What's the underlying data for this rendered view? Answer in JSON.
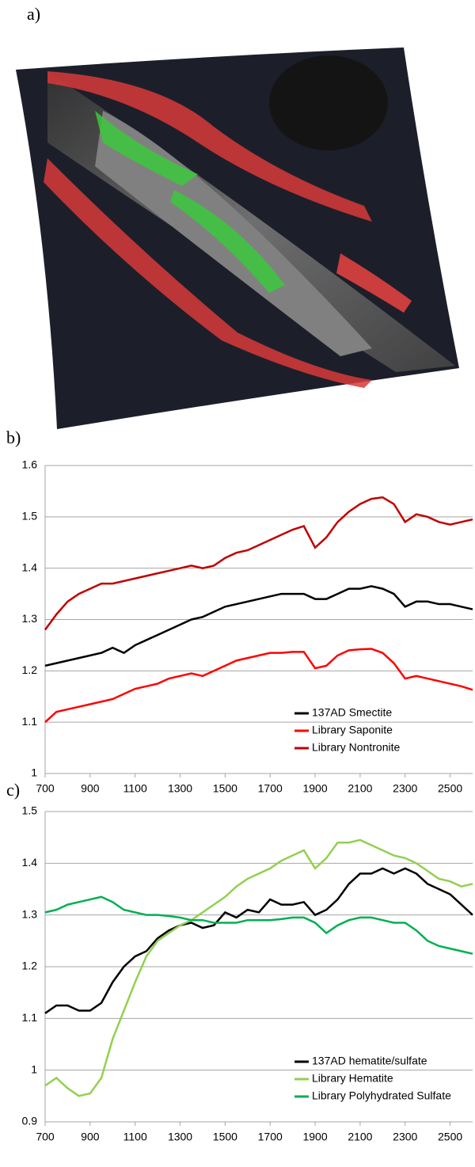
{
  "figure_label": "a)",
  "chart_data": [
    {
      "type": "line",
      "label": "b)",
      "x": [
        700,
        750,
        800,
        850,
        900,
        950,
        1000,
        1050,
        1100,
        1150,
        1200,
        1250,
        1300,
        1350,
        1400,
        1450,
        1500,
        1550,
        1600,
        1650,
        1700,
        1750,
        1800,
        1850,
        1900,
        1950,
        2000,
        2050,
        2100,
        2150,
        2200,
        2250,
        2300,
        2350,
        2400,
        2450,
        2500,
        2550,
        2600
      ],
      "series": [
        {
          "name": "137AD Smectite",
          "color": "#000000",
          "values": [
            1.21,
            1.215,
            1.22,
            1.225,
            1.23,
            1.235,
            1.245,
            1.235,
            1.25,
            1.26,
            1.27,
            1.28,
            1.29,
            1.3,
            1.305,
            1.315,
            1.325,
            1.33,
            1.335,
            1.34,
            1.345,
            1.35,
            1.35,
            1.35,
            1.34,
            1.34,
            1.35,
            1.36,
            1.36,
            1.365,
            1.36,
            1.35,
            1.325,
            1.335,
            1.335,
            1.33,
            1.33,
            1.325,
            1.32
          ]
        },
        {
          "name": "Library Saponite",
          "color": "#ff0000",
          "values": [
            1.1,
            1.12,
            1.125,
            1.13,
            1.135,
            1.14,
            1.145,
            1.155,
            1.165,
            1.17,
            1.175,
            1.185,
            1.19,
            1.195,
            1.19,
            1.2,
            1.21,
            1.22,
            1.225,
            1.23,
            1.235,
            1.235,
            1.237,
            1.237,
            1.205,
            1.21,
            1.23,
            1.24,
            1.242,
            1.243,
            1.235,
            1.215,
            1.185,
            1.19,
            1.185,
            1.18,
            1.175,
            1.17,
            1.163
          ]
        },
        {
          "name": "Library Nontronite",
          "color": "#c00000",
          "values": [
            1.28,
            1.31,
            1.335,
            1.35,
            1.36,
            1.37,
            1.37,
            1.375,
            1.38,
            1.385,
            1.39,
            1.395,
            1.4,
            1.405,
            1.4,
            1.405,
            1.42,
            1.43,
            1.435,
            1.445,
            1.455,
            1.465,
            1.475,
            1.482,
            1.44,
            1.46,
            1.49,
            1.51,
            1.525,
            1.535,
            1.538,
            1.525,
            1.49,
            1.505,
            1.5,
            1.49,
            1.485,
            1.49,
            1.495
          ]
        }
      ],
      "xlim": [
        700,
        2600
      ],
      "xticks": [
        700,
        900,
        1100,
        1300,
        1500,
        1700,
        1900,
        2100,
        2300,
        2500
      ],
      "ylim": [
        1,
        1.6
      ],
      "yticks": [
        1,
        1.1,
        1.2,
        1.3,
        1.4,
        1.5,
        1.6
      ],
      "grid": true,
      "legend": "lower right"
    },
    {
      "type": "line",
      "label": "c)",
      "x": [
        700,
        750,
        800,
        850,
        900,
        950,
        1000,
        1050,
        1100,
        1150,
        1200,
        1250,
        1300,
        1350,
        1400,
        1450,
        1500,
        1550,
        1600,
        1650,
        1700,
        1750,
        1800,
        1850,
        1900,
        1950,
        2000,
        2050,
        2100,
        2150,
        2200,
        2250,
        2300,
        2350,
        2400,
        2450,
        2500,
        2550,
        2600
      ],
      "series": [
        {
          "name": "137AD hematite/sulfate",
          "color": "#000000",
          "values": [
            1.11,
            1.125,
            1.125,
            1.115,
            1.115,
            1.13,
            1.17,
            1.2,
            1.22,
            1.23,
            1.255,
            1.27,
            1.28,
            1.285,
            1.275,
            1.28,
            1.305,
            1.295,
            1.31,
            1.305,
            1.33,
            1.32,
            1.32,
            1.325,
            1.3,
            1.31,
            1.33,
            1.36,
            1.38,
            1.38,
            1.39,
            1.38,
            1.39,
            1.38,
            1.36,
            1.35,
            1.34,
            1.32,
            1.3
          ]
        },
        {
          "name": "Library Hematite",
          "color": "#92d050",
          "values": [
            0.97,
            0.985,
            0.965,
            0.95,
            0.955,
            0.985,
            1.06,
            1.115,
            1.17,
            1.22,
            1.25,
            1.265,
            1.28,
            1.29,
            1.305,
            1.32,
            1.335,
            1.355,
            1.37,
            1.38,
            1.39,
            1.405,
            1.415,
            1.425,
            1.39,
            1.41,
            1.44,
            1.44,
            1.445,
            1.435,
            1.425,
            1.415,
            1.41,
            1.4,
            1.385,
            1.37,
            1.365,
            1.355,
            1.36
          ]
        },
        {
          "name": "Library Polyhydrated Sulfate",
          "color": "#00b050",
          "values": [
            1.305,
            1.31,
            1.32,
            1.325,
            1.33,
            1.335,
            1.325,
            1.31,
            1.305,
            1.3,
            1.3,
            1.298,
            1.295,
            1.29,
            1.29,
            1.285,
            1.285,
            1.285,
            1.29,
            1.29,
            1.29,
            1.292,
            1.295,
            1.295,
            1.285,
            1.265,
            1.28,
            1.29,
            1.295,
            1.295,
            1.29,
            1.285,
            1.285,
            1.27,
            1.25,
            1.24,
            1.235,
            1.23,
            1.225
          ]
        }
      ],
      "xlim": [
        700,
        2600
      ],
      "xticks": [
        700,
        900,
        1100,
        1300,
        1500,
        1700,
        1900,
        2100,
        2300,
        2500
      ],
      "ylim": [
        0.9,
        1.5
      ],
      "yticks": [
        0.9,
        1,
        1.1,
        1.2,
        1.3,
        1.4,
        1.5
      ],
      "grid": true,
      "legend": "lower right"
    }
  ]
}
